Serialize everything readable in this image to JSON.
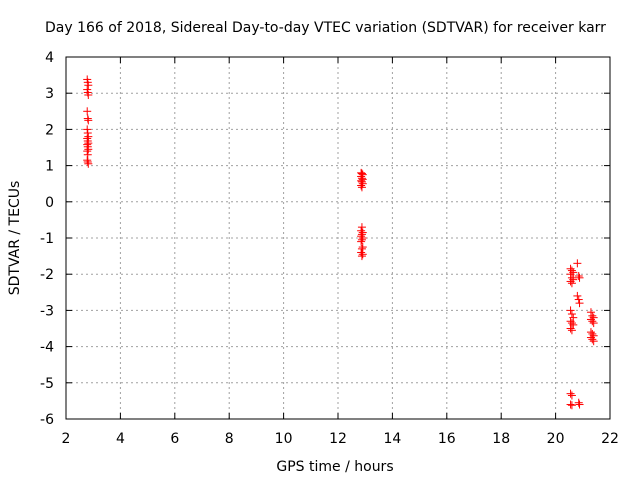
{
  "chart_data": {
    "type": "scatter",
    "title": "Day 166 of 2018, Sidereal Day-to-day VTEC variation (SDTVAR) for receiver karr",
    "xlabel": "GPS time / hours",
    "ylabel": "SDTVAR / TECUs",
    "xlim": [
      2,
      22
    ],
    "ylim": [
      -6,
      4
    ],
    "xticks": [
      2,
      4,
      6,
      8,
      10,
      12,
      14,
      16,
      18,
      20,
      22
    ],
    "yticks": [
      -6,
      -5,
      -4,
      -3,
      -2,
      -1,
      0,
      1,
      2,
      3,
      4
    ],
    "grid": true,
    "marker": "+",
    "color": "#ff0000",
    "series": [
      {
        "name": "SDTVAR",
        "points": [
          [
            2.78,
            3.38
          ],
          [
            2.8,
            3.3
          ],
          [
            2.82,
            3.22
          ],
          [
            2.78,
            3.1
          ],
          [
            2.8,
            3.02
          ],
          [
            2.82,
            2.95
          ],
          [
            2.78,
            2.5
          ],
          [
            2.8,
            2.3
          ],
          [
            2.82,
            2.25
          ],
          [
            2.78,
            2.0
          ],
          [
            2.8,
            1.9
          ],
          [
            2.82,
            1.8
          ],
          [
            2.78,
            1.75
          ],
          [
            2.8,
            1.68
          ],
          [
            2.82,
            1.62
          ],
          [
            2.78,
            1.58
          ],
          [
            2.8,
            1.52
          ],
          [
            2.82,
            1.45
          ],
          [
            2.78,
            1.4
          ],
          [
            2.8,
            1.3
          ],
          [
            2.78,
            1.15
          ],
          [
            2.8,
            1.1
          ],
          [
            2.82,
            1.05
          ],
          [
            12.85,
            0.8
          ],
          [
            12.88,
            0.78
          ],
          [
            12.91,
            0.75
          ],
          [
            12.85,
            0.7
          ],
          [
            12.88,
            0.65
          ],
          [
            12.91,
            0.62
          ],
          [
            12.85,
            0.58
          ],
          [
            12.88,
            0.55
          ],
          [
            12.91,
            0.5
          ],
          [
            12.85,
            0.45
          ],
          [
            12.88,
            0.4
          ],
          [
            12.88,
            -0.7
          ],
          [
            12.85,
            -0.8
          ],
          [
            12.91,
            -0.85
          ],
          [
            12.88,
            -0.9
          ],
          [
            12.85,
            -0.95
          ],
          [
            12.91,
            -1.0
          ],
          [
            12.88,
            -1.05
          ],
          [
            12.85,
            -1.1
          ],
          [
            12.91,
            -1.25
          ],
          [
            12.88,
            -1.3
          ],
          [
            12.85,
            -1.4
          ],
          [
            12.91,
            -1.45
          ],
          [
            12.88,
            -1.5
          ],
          [
            20.8,
            -1.7
          ],
          [
            20.55,
            -1.85
          ],
          [
            20.6,
            -1.9
          ],
          [
            20.65,
            -1.95
          ],
          [
            20.55,
            -2.0
          ],
          [
            20.6,
            -2.1
          ],
          [
            20.65,
            -2.15
          ],
          [
            20.55,
            -2.2
          ],
          [
            20.6,
            -2.25
          ],
          [
            20.85,
            -2.05
          ],
          [
            20.88,
            -2.1
          ],
          [
            20.8,
            -2.6
          ],
          [
            20.85,
            -2.7
          ],
          [
            20.88,
            -2.8
          ],
          [
            20.55,
            -3.0
          ],
          [
            20.6,
            -3.1
          ],
          [
            20.65,
            -3.2
          ],
          [
            20.55,
            -3.3
          ],
          [
            20.6,
            -3.35
          ],
          [
            20.65,
            -3.4
          ],
          [
            20.55,
            -3.5
          ],
          [
            20.6,
            -3.55
          ],
          [
            21.3,
            -3.05
          ],
          [
            21.35,
            -3.15
          ],
          [
            21.4,
            -3.2
          ],
          [
            21.3,
            -3.25
          ],
          [
            21.35,
            -3.3
          ],
          [
            21.4,
            -3.35
          ],
          [
            21.3,
            -3.6
          ],
          [
            21.35,
            -3.65
          ],
          [
            21.4,
            -3.7
          ],
          [
            21.3,
            -3.75
          ],
          [
            21.35,
            -3.8
          ],
          [
            21.4,
            -3.85
          ],
          [
            20.55,
            -5.3
          ],
          [
            20.6,
            -5.35
          ],
          [
            20.55,
            -5.6
          ],
          [
            20.6,
            -5.62
          ],
          [
            20.85,
            -5.55
          ],
          [
            20.88,
            -5.6
          ]
        ]
      }
    ]
  }
}
